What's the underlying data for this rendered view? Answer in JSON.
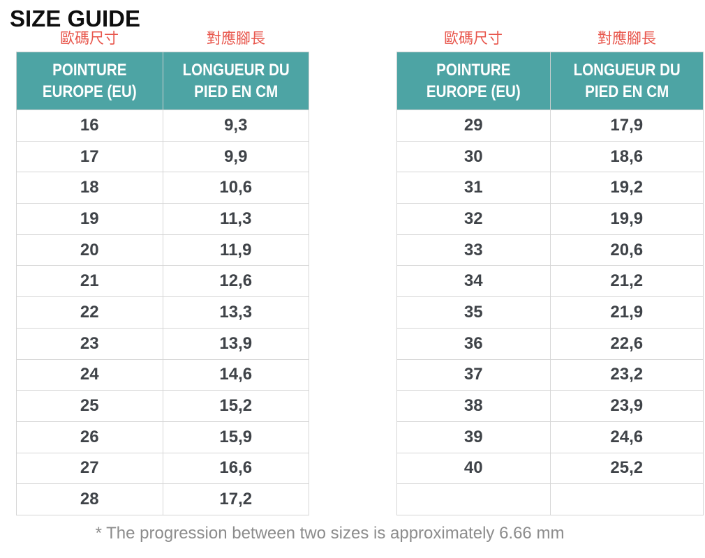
{
  "title": "SIZE GUIDE",
  "footnote": "* The progression between two sizes is approximately 6.66 mm",
  "colors": {
    "header_teal": "#4da4a4",
    "label_red": "#e8564c",
    "cell_text": "#3f4348",
    "border_gray": "#d6d6d6",
    "footnote_gray": "#8c8c8c",
    "title_black": "#0e0e0e"
  },
  "tables": [
    {
      "labels": [
        "歐碼尺寸",
        "對應腳長"
      ],
      "headers": [
        "POINTURE\nEUROPE (EU)",
        "LONGUEUR DU\nPIED EN CM"
      ],
      "rows": [
        [
          "16",
          "9,3"
        ],
        [
          "17",
          "9,9"
        ],
        [
          "18",
          "10,6"
        ],
        [
          "19",
          "11,3"
        ],
        [
          "20",
          "11,9"
        ],
        [
          "21",
          "12,6"
        ],
        [
          "22",
          "13,3"
        ],
        [
          "23",
          "13,9"
        ],
        [
          "24",
          "14,6"
        ],
        [
          "25",
          "15,2"
        ],
        [
          "26",
          "15,9"
        ],
        [
          "27",
          "16,6"
        ],
        [
          "28",
          "17,2"
        ]
      ]
    },
    {
      "labels": [
        "歐碼尺寸",
        "對應腳長"
      ],
      "headers": [
        "POINTURE\nEUROPE (EU)",
        "LONGUEUR DU\nPIED EN CM"
      ],
      "rows": [
        [
          "29",
          "17,9"
        ],
        [
          "30",
          "18,6"
        ],
        [
          "31",
          "19,2"
        ],
        [
          "32",
          "19,9"
        ],
        [
          "33",
          "20,6"
        ],
        [
          "34",
          "21,2"
        ],
        [
          "35",
          "21,9"
        ],
        [
          "36",
          "22,6"
        ],
        [
          "37",
          "23,2"
        ],
        [
          "38",
          "23,9"
        ],
        [
          "39",
          "24,6"
        ],
        [
          "40",
          "25,2"
        ],
        [
          "",
          ""
        ]
      ]
    }
  ]
}
